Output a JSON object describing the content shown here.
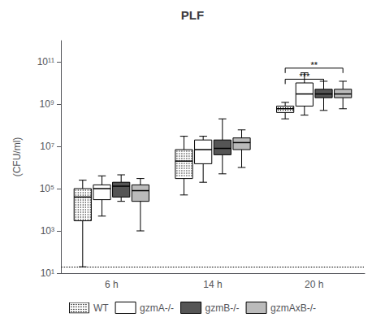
{
  "chart_data": {
    "type": "boxplot",
    "title": "PLF",
    "ylabel": "(CFU/ml)",
    "categories": [
      "6 h",
      "14 h",
      "20 h"
    ],
    "log": "y",
    "ylim": [
      10,
      1000000000000.0
    ],
    "yticks": [
      {
        "value": 10,
        "label": "10¹"
      },
      {
        "value": 1000,
        "label": "10³"
      },
      {
        "value": 100000,
        "label": "10⁵"
      },
      {
        "value": 10000000,
        "label": "10⁷"
      },
      {
        "value": 1000000000,
        "label": "10⁹"
      },
      {
        "value": 100000000000,
        "label": "10¹¹"
      }
    ],
    "grid": false,
    "legend": "bottom",
    "series": [
      {
        "name": "WT",
        "color": "#ffffff",
        "marker": "dotted",
        "values": [
          [
            20,
            3000.0,
            40000.0,
            100000.0,
            250000.0
          ],
          [
            50000.0,
            300000.0,
            2000000.0,
            7000000.0,
            30000000.0
          ],
          [
            200000000.0,
            400000000.0,
            600000000.0,
            800000000.0,
            1200000000.0
          ]
        ]
      },
      {
        "name": "gzmA-/-",
        "color": "#ffffff",
        "values": [
          [
            5000.0,
            30000.0,
            100000.0,
            150000.0,
            400000.0
          ],
          [
            200000.0,
            1500000.0,
            7000000.0,
            20000000.0,
            30000000.0
          ],
          [
            300000000.0,
            800000000.0,
            3000000000.0,
            10000000000.0,
            30000000000.0
          ]
        ]
      },
      {
        "name": "gzmB-/-",
        "color": "#555555",
        "values": [
          [
            25000.0,
            40000.0,
            130000.0,
            200000.0,
            450000.0
          ],
          [
            500000.0,
            4000000.0,
            8000000.0,
            20000000.0,
            200000000.0
          ],
          [
            500000000.0,
            2000000000.0,
            3000000000.0,
            5000000000.0,
            12000000000.0
          ]
        ]
      },
      {
        "name": "gzmAxB-/-",
        "color": "#bbbbbb",
        "values": [
          [
            1000.0,
            25000.0,
            80000.0,
            150000.0,
            300000.0
          ],
          [
            1000000.0,
            7000000.0,
            15000000.0,
            25000000.0,
            60000000.0
          ],
          [
            600000000.0,
            2000000000.0,
            3000000000.0,
            5000000000.0,
            12000000000.0
          ]
        ]
      }
    ],
    "detection_limit": 20,
    "annotations": [
      {
        "text": "**",
        "category": "20 h",
        "from": "WT",
        "to": "gzmAxB-/-",
        "y": 50000000000.0
      },
      {
        "text": "***",
        "category": "20 h",
        "from": "WT",
        "to": "gzmB-/-",
        "y": 15000000000.0
      }
    ]
  }
}
